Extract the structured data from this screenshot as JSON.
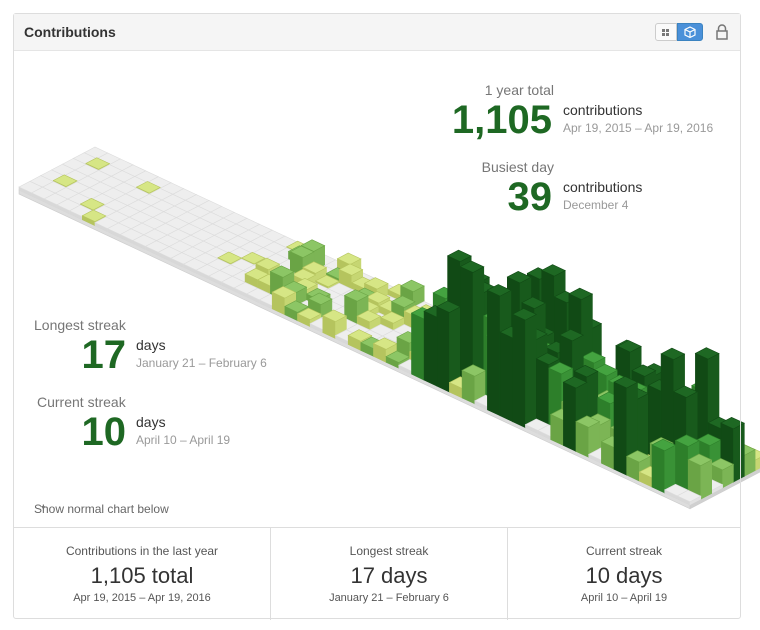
{
  "header": {
    "title": "Contributions"
  },
  "summary": {
    "year_total": {
      "label": "1 year total",
      "count": "1,105",
      "unit": "contributions",
      "range": "Apr 19, 2015 – Apr 19, 2016"
    },
    "busiest_day": {
      "label": "Busiest day",
      "count": "39",
      "unit": "contributions",
      "date": "December 4"
    },
    "longest_streak": {
      "label": "Longest streak",
      "count": "17",
      "unit": "days",
      "range": "January 21 – February 6"
    },
    "current_streak": {
      "label": "Current streak",
      "count": "10",
      "unit": "days",
      "range": "April 10 – April 19"
    }
  },
  "toggle": "Show normal chart below",
  "footer": [
    {
      "label": "Contributions in the last year",
      "value": "1,105 total",
      "range": "Apr 19, 2015 – Apr 19, 2016"
    },
    {
      "label": "Longest streak",
      "value": "17 days",
      "range": "January 21 – February 6"
    },
    {
      "label": "Current streak",
      "value": "10 days",
      "range": "April 10 – April 19"
    }
  ]
}
